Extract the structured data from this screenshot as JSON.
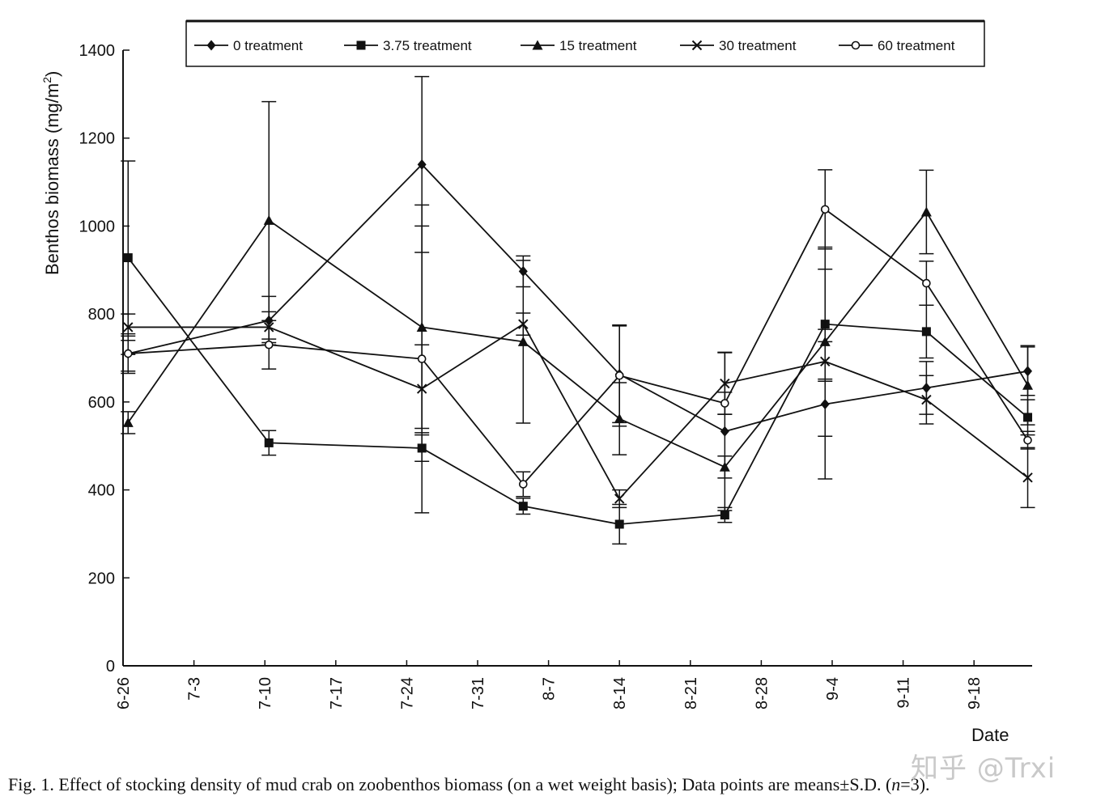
{
  "chart_data": {
    "type": "line",
    "title": "",
    "xlabel": "Date",
    "ylabel": "Benthos biomass (mg/m²)",
    "ylabel_parts": {
      "main": "Benthos biomass  (mg/m",
      "sup": "2",
      "close": ")"
    },
    "ylim": [
      0,
      1400
    ],
    "yticks": [
      0,
      200,
      400,
      600,
      800,
      1000,
      1200,
      1400
    ],
    "x_tick_labels": [
      "6-26",
      "7-3",
      "7-10",
      "7-17",
      "7-24",
      "7-31",
      "8-7",
      "8-14",
      "8-21",
      "8-28",
      "9-4",
      "9-11",
      "9-18"
    ],
    "x_tick_days": [
      0,
      7,
      14,
      21,
      28,
      35,
      42,
      49,
      56,
      63,
      70,
      77,
      84
    ],
    "xlim_days": [
      0,
      90
    ],
    "x_days": [
      0.5,
      14.4,
      29.5,
      39.5,
      49,
      59.4,
      69.3,
      79.3,
      89.3
    ],
    "grid": false,
    "legend_position": "top",
    "series": [
      {
        "name": "0  treatment",
        "marker": "diamond",
        "values": [
          710,
          785,
          1140,
          897,
          663,
          533,
          595,
          632,
          670
        ],
        "errors": [
          45,
          55,
          200,
          35,
          110,
          180,
          170,
          60,
          55
        ]
      },
      {
        "name": "3.75  treatment",
        "marker": "square",
        "values": [
          928,
          507,
          495,
          363,
          322,
          343,
          777,
          760,
          565
        ],
        "errors": [
          220,
          28,
          30,
          18,
          45,
          17,
          125,
          60,
          40
        ]
      },
      {
        "name": "15  treatment",
        "marker": "triangle",
        "values": [
          553,
          1013,
          770,
          737,
          562,
          452,
          737,
          1032,
          638
        ],
        "errors": [
          25,
          270,
          230,
          185,
          82,
          25,
          215,
          95,
          90
        ]
      },
      {
        "name": "30 treatment",
        "marker": "cross",
        "values": [
          770,
          770,
          630,
          777,
          380,
          642,
          692,
          605,
          428
        ],
        "errors": [
          30,
          35,
          100,
          25,
          20,
          70,
          45,
          55,
          68
        ]
      },
      {
        "name": "60 treatment",
        "marker": "circle",
        "values": [
          710,
          730,
          698,
          413,
          660,
          597,
          1038,
          870,
          513
        ],
        "errors": [
          40,
          55,
          350,
          28,
          115,
          25,
          90,
          50,
          20
        ]
      }
    ]
  },
  "caption": {
    "prefix": "Fig. 1. Effect of stocking density of mud crab on zoobenthos biomass (on a wet weight basis); Data points are means",
    "pm": "±",
    "sd": "S.D. (",
    "n": "n",
    "eq": "=3)."
  },
  "watermark": "知乎 @Trxi",
  "colors": {
    "ink": "#111111",
    "watermark": "#c9c9c9"
  }
}
